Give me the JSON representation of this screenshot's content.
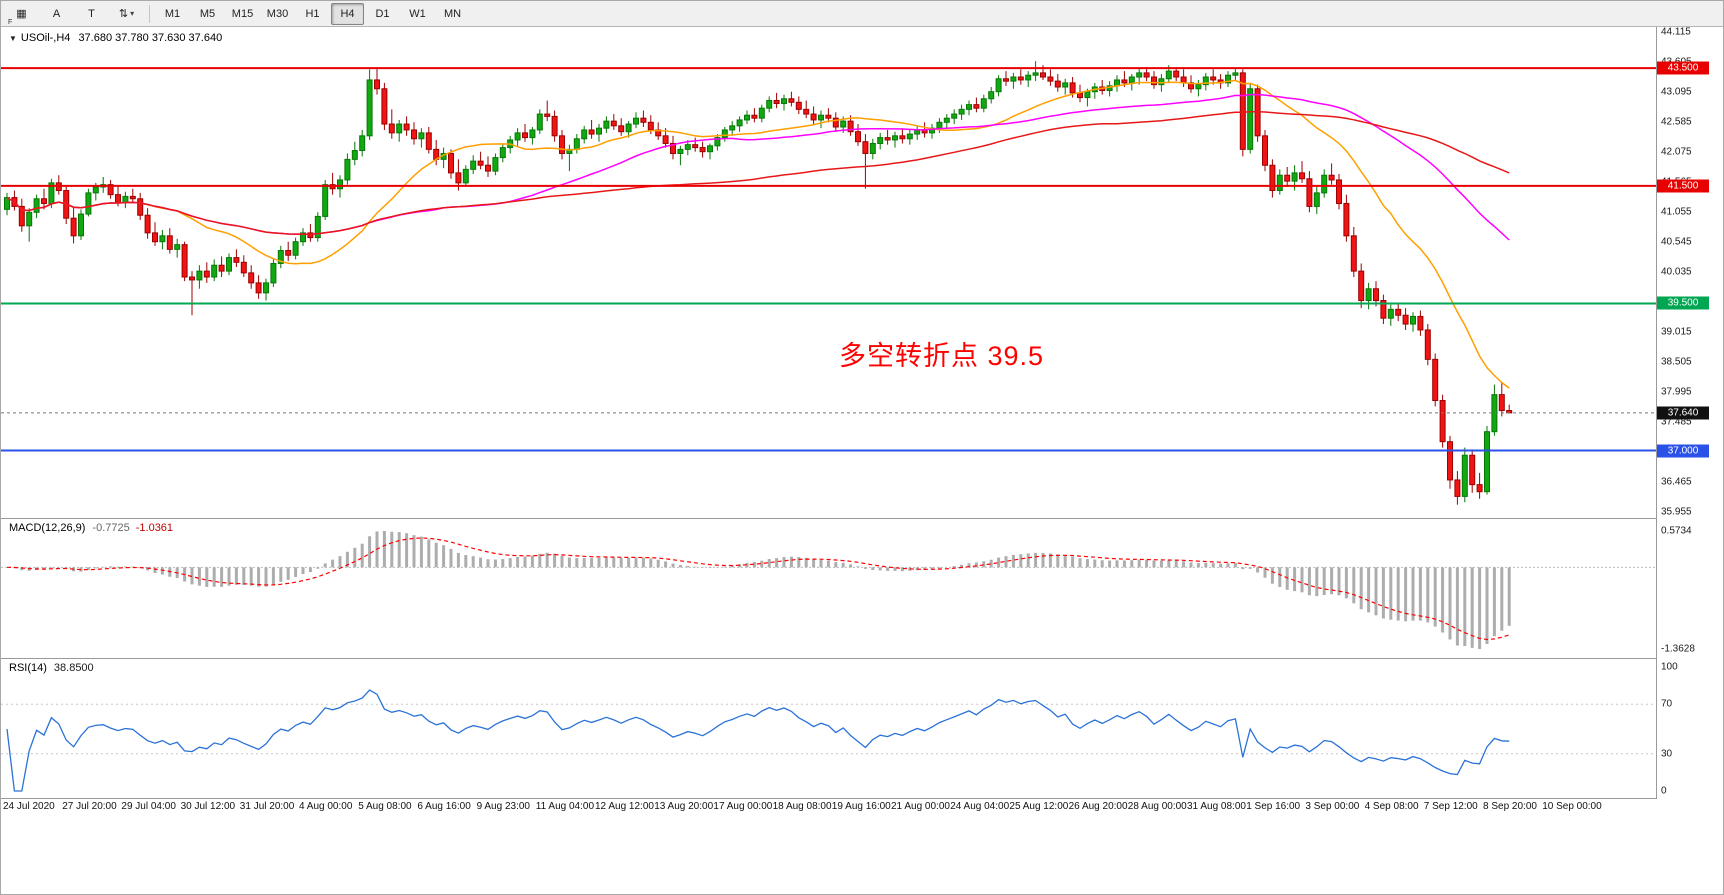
{
  "toolbar": {
    "left_tools": [
      {
        "name": "chart-grid-button",
        "glyph": "▦",
        "badge": "F"
      },
      {
        "name": "cursor-a-button",
        "glyph": "A"
      },
      {
        "name": "text-tool-button",
        "glyph": "T"
      },
      {
        "name": "scale-arrows-button",
        "glyph": "⇅",
        "caret": "▾"
      }
    ],
    "timeframes": [
      "M1",
      "M5",
      "M15",
      "M30",
      "H1",
      "H4",
      "D1",
      "W1",
      "MN"
    ],
    "active_timeframe": "H4"
  },
  "header": {
    "expander": "▼",
    "symbol_title": "USOil-,H4",
    "ohlc_text": "37.680 37.780 37.630 37.640"
  },
  "annotation": {
    "text": "多空转折点 39.5",
    "color": "#ff0000"
  },
  "macd_panel": {
    "name": "MACD(12,26,9)",
    "main_value": "-0.7725",
    "signal_value": "-1.0361",
    "scale_max": "0.5734",
    "scale_min": "-1.3628"
  },
  "rsi_panel": {
    "name": "RSI(14)",
    "value": "38.8500",
    "scale_labels": [
      "100",
      "70",
      "30",
      "0"
    ]
  },
  "chart_data": {
    "type": "candlestick",
    "symbol": "USOil-",
    "timeframe": "H4",
    "title": "USOil- H4 candlestick chart with MACD and RSI",
    "y_axis": {
      "max": 44.115,
      "min": 35.955,
      "step": 0.51,
      "labels": [
        "44.115",
        "43.605",
        "43.095",
        "42.585",
        "42.075",
        "41.565",
        "41.055",
        "40.545",
        "40.035",
        "39.525",
        "39.015",
        "38.505",
        "37.995",
        "37.485",
        "36.975",
        "36.465",
        "35.955"
      ]
    },
    "x_labels": [
      "24 Jul 2020",
      "27 Jul 20:00",
      "29 Jul 04:00",
      "30 Jul 12:00",
      "31 Jul 20:00",
      "4 Aug 00:00",
      "5 Aug 08:00",
      "6 Aug 16:00",
      "9 Aug 23:00",
      "11 Aug 04:00",
      "12 Aug 12:00",
      "13 Aug 20:00",
      "17 Aug 00:00",
      "18 Aug 08:00",
      "19 Aug 16:00",
      "21 Aug 00:00",
      "24 Aug 04:00",
      "25 Aug 12:00",
      "26 Aug 20:00",
      "28 Aug 00:00",
      "31 Aug 08:00",
      "1 Sep 16:00",
      "3 Sep 00:00",
      "4 Sep 08:00",
      "7 Sep 12:00",
      "8 Sep 20:00",
      "10 Sep 00:00"
    ],
    "x_label_every_n_candles": 8,
    "horizontal_lines": [
      {
        "price": 43.5,
        "label": "43.500",
        "color": "#e80000",
        "width": 2
      },
      {
        "price": 41.5,
        "label": "41.500",
        "color": "#e80000",
        "width": 2
      },
      {
        "price": 39.5,
        "label": "39.500",
        "color": "#00a651",
        "width": 2
      },
      {
        "price": 37.0,
        "label": "37.000",
        "color": "#2b52e8",
        "width": 2
      }
    ],
    "current_price": {
      "price": 37.64,
      "label": "37.640",
      "line_color": "#777777",
      "box_color": "#111111"
    },
    "indicators": {
      "moving_averages": [
        {
          "color": "#ff9f00",
          "period_estimate": 20
        },
        {
          "color": "#ff00ff",
          "period_estimate": 50
        },
        {
          "color": "#e81717",
          "period_estimate": 100
        }
      ],
      "macd": {
        "fast": 12,
        "slow": 26,
        "signal": 9,
        "histogram_color": "#adadad",
        "signal_color": "#ff0000"
      },
      "rsi": {
        "period": 14,
        "line_color": "#2a72d8",
        "levels": [
          70,
          30
        ]
      }
    },
    "candle_colors": {
      "up": "#11a811",
      "up_border": "#067806",
      "down": "#f01414",
      "down_border": "#9c0000"
    },
    "ohlc": [
      [
        41.1,
        41.38,
        41.0,
        41.3
      ],
      [
        41.3,
        41.42,
        41.08,
        41.15
      ],
      [
        41.15,
        41.28,
        40.72,
        40.82
      ],
      [
        40.82,
        41.12,
        40.55,
        41.05
      ],
      [
        41.05,
        41.35,
        40.95,
        41.28
      ],
      [
        41.28,
        41.45,
        41.1,
        41.2
      ],
      [
        41.2,
        41.62,
        41.12,
        41.55
      ],
      [
        41.55,
        41.68,
        41.35,
        41.42
      ],
      [
        41.42,
        41.5,
        40.85,
        40.95
      ],
      [
        40.95,
        41.15,
        40.52,
        40.65
      ],
      [
        40.65,
        41.1,
        40.58,
        41.02
      ],
      [
        41.02,
        41.45,
        40.98,
        41.38
      ],
      [
        41.38,
        41.55,
        41.25,
        41.48
      ],
      [
        41.48,
        41.65,
        41.38,
        41.52
      ],
      [
        41.52,
        41.6,
        41.28,
        41.35
      ],
      [
        41.35,
        41.48,
        41.15,
        41.22
      ],
      [
        41.22,
        41.4,
        41.12,
        41.32
      ],
      [
        41.32,
        41.45,
        41.2,
        41.28
      ],
      [
        41.28,
        41.38,
        40.92,
        41.0
      ],
      [
        41.0,
        41.12,
        40.6,
        40.7
      ],
      [
        40.7,
        40.88,
        40.48,
        40.55
      ],
      [
        40.55,
        40.75,
        40.42,
        40.65
      ],
      [
        40.65,
        40.78,
        40.35,
        40.42
      ],
      [
        40.42,
        40.6,
        40.28,
        40.5
      ],
      [
        40.5,
        40.55,
        39.88,
        39.95
      ],
      [
        39.95,
        40.05,
        39.3,
        39.9
      ],
      [
        39.9,
        40.15,
        39.75,
        40.05
      ],
      [
        40.05,
        40.2,
        39.85,
        39.95
      ],
      [
        39.95,
        40.25,
        39.88,
        40.15
      ],
      [
        40.15,
        40.3,
        39.95,
        40.05
      ],
      [
        40.05,
        40.35,
        39.98,
        40.28
      ],
      [
        40.28,
        40.42,
        40.12,
        40.2
      ],
      [
        40.2,
        40.32,
        39.95,
        40.02
      ],
      [
        40.02,
        40.15,
        39.75,
        39.85
      ],
      [
        39.85,
        39.98,
        39.58,
        39.68
      ],
      [
        39.68,
        39.92,
        39.55,
        39.85
      ],
      [
        39.85,
        40.25,
        39.78,
        40.18
      ],
      [
        40.18,
        40.48,
        40.1,
        40.4
      ],
      [
        40.4,
        40.55,
        40.22,
        40.32
      ],
      [
        40.32,
        40.62,
        40.25,
        40.55
      ],
      [
        40.55,
        40.78,
        40.48,
        40.7
      ],
      [
        40.7,
        40.85,
        40.55,
        40.62
      ],
      [
        40.62,
        41.05,
        40.55,
        40.98
      ],
      [
        40.98,
        41.6,
        40.92,
        41.52
      ],
      [
        41.52,
        41.72,
        41.35,
        41.45
      ],
      [
        41.45,
        41.68,
        41.3,
        41.6
      ],
      [
        41.6,
        42.05,
        41.52,
        41.95
      ],
      [
        41.95,
        42.25,
        41.85,
        42.1
      ],
      [
        42.1,
        42.45,
        42.0,
        42.35
      ],
      [
        42.35,
        43.48,
        42.28,
        43.3
      ],
      [
        43.3,
        43.52,
        43.05,
        43.15
      ],
      [
        43.15,
        43.25,
        42.45,
        42.55
      ],
      [
        42.55,
        42.8,
        42.3,
        42.4
      ],
      [
        42.4,
        42.62,
        42.25,
        42.55
      ],
      [
        42.55,
        42.68,
        42.35,
        42.45
      ],
      [
        42.45,
        42.58,
        42.2,
        42.3
      ],
      [
        42.3,
        42.48,
        42.15,
        42.4
      ],
      [
        42.4,
        42.5,
        42.05,
        42.12
      ],
      [
        42.12,
        42.28,
        41.85,
        41.95
      ],
      [
        41.95,
        42.15,
        41.8,
        42.05
      ],
      [
        42.05,
        42.12,
        41.62,
        41.72
      ],
      [
        41.72,
        41.95,
        41.42,
        41.55
      ],
      [
        41.55,
        41.85,
        41.48,
        41.78
      ],
      [
        41.78,
        42.02,
        41.7,
        41.92
      ],
      [
        41.92,
        42.08,
        41.78,
        41.85
      ],
      [
        41.85,
        42.0,
        41.65,
        41.75
      ],
      [
        41.75,
        42.05,
        41.68,
        41.98
      ],
      [
        41.98,
        42.22,
        41.9,
        42.15
      ],
      [
        42.15,
        42.35,
        42.05,
        42.28
      ],
      [
        42.28,
        42.48,
        42.18,
        42.4
      ],
      [
        42.4,
        42.55,
        42.25,
        42.32
      ],
      [
        42.32,
        42.5,
        42.2,
        42.45
      ],
      [
        42.45,
        42.8,
        42.38,
        42.72
      ],
      [
        42.72,
        42.95,
        42.6,
        42.68
      ],
      [
        42.68,
        42.78,
        42.25,
        42.35
      ],
      [
        42.35,
        42.45,
        41.95,
        42.05
      ],
      [
        42.05,
        42.2,
        41.75,
        42.12
      ],
      [
        42.12,
        42.38,
        42.05,
        42.3
      ],
      [
        42.3,
        42.52,
        42.22,
        42.45
      ],
      [
        42.45,
        42.62,
        42.3,
        42.38
      ],
      [
        42.38,
        42.55,
        42.25,
        42.48
      ],
      [
        42.48,
        42.68,
        42.4,
        42.6
      ],
      [
        42.6,
        42.72,
        42.45,
        42.52
      ],
      [
        42.52,
        42.65,
        42.35,
        42.42
      ],
      [
        42.42,
        42.6,
        42.32,
        42.55
      ],
      [
        42.55,
        42.75,
        42.48,
        42.65
      ],
      [
        42.65,
        42.78,
        42.5,
        42.58
      ],
      [
        42.58,
        42.7,
        42.38,
        42.45
      ],
      [
        42.45,
        42.58,
        42.28,
        42.35
      ],
      [
        42.35,
        42.48,
        42.15,
        42.22
      ],
      [
        42.22,
        42.35,
        41.95,
        42.05
      ],
      [
        42.05,
        42.18,
        41.85,
        42.12
      ],
      [
        42.12,
        42.28,
        42.02,
        42.2
      ],
      [
        42.2,
        42.32,
        42.08,
        42.15
      ],
      [
        42.15,
        42.25,
        41.98,
        42.08
      ],
      [
        42.08,
        42.22,
        41.95,
        42.18
      ],
      [
        42.18,
        42.38,
        42.1,
        42.32
      ],
      [
        42.32,
        42.5,
        42.25,
        42.45
      ],
      [
        42.45,
        42.6,
        42.35,
        42.52
      ],
      [
        42.52,
        42.68,
        42.42,
        42.62
      ],
      [
        42.62,
        42.78,
        42.55,
        42.7
      ],
      [
        42.7,
        42.82,
        42.58,
        42.65
      ],
      [
        42.65,
        42.88,
        42.58,
        42.82
      ],
      [
        42.82,
        43.02,
        42.75,
        42.95
      ],
      [
        42.95,
        43.08,
        42.82,
        42.9
      ],
      [
        42.9,
        43.05,
        42.78,
        42.98
      ],
      [
        42.98,
        43.1,
        42.85,
        42.92
      ],
      [
        42.92,
        43.02,
        42.72,
        42.8
      ],
      [
        42.8,
        42.95,
        42.65,
        42.72
      ],
      [
        42.72,
        42.85,
        42.55,
        42.62
      ],
      [
        42.62,
        42.78,
        42.48,
        42.7
      ],
      [
        42.7,
        42.82,
        42.58,
        42.65
      ],
      [
        42.65,
        42.75,
        42.42,
        42.5
      ],
      [
        42.5,
        42.68,
        42.4,
        42.6
      ],
      [
        42.6,
        42.7,
        42.35,
        42.42
      ],
      [
        42.42,
        42.55,
        42.18,
        42.25
      ],
      [
        42.25,
        42.38,
        41.45,
        42.05
      ],
      [
        42.05,
        42.3,
        41.95,
        42.22
      ],
      [
        42.22,
        42.4,
        42.12,
        42.32
      ],
      [
        42.32,
        42.45,
        42.2,
        42.28
      ],
      [
        42.28,
        42.42,
        42.15,
        42.35
      ],
      [
        42.35,
        42.48,
        42.22,
        42.3
      ],
      [
        42.3,
        42.45,
        42.2,
        42.38
      ],
      [
        42.38,
        42.52,
        42.28,
        42.45
      ],
      [
        42.45,
        42.58,
        42.32,
        42.4
      ],
      [
        42.4,
        42.55,
        42.3,
        42.48
      ],
      [
        42.48,
        42.65,
        42.4,
        42.58
      ],
      [
        42.58,
        42.72,
        42.48,
        42.65
      ],
      [
        42.65,
        42.8,
        42.55,
        42.72
      ],
      [
        42.72,
        42.88,
        42.62,
        42.8
      ],
      [
        42.8,
        42.95,
        42.7,
        42.88
      ],
      [
        42.88,
        43.0,
        42.75,
        42.82
      ],
      [
        42.82,
        43.05,
        42.75,
        42.98
      ],
      [
        42.98,
        43.18,
        42.9,
        43.1
      ],
      [
        43.1,
        43.38,
        43.02,
        43.32
      ],
      [
        43.32,
        43.45,
        43.2,
        43.28
      ],
      [
        43.28,
        43.42,
        43.15,
        43.35
      ],
      [
        43.35,
        43.48,
        43.22,
        43.3
      ],
      [
        43.3,
        43.45,
        43.18,
        43.38
      ],
      [
        43.38,
        43.62,
        43.28,
        43.42
      ],
      [
        43.42,
        43.55,
        43.3,
        43.35
      ],
      [
        43.35,
        43.48,
        43.2,
        43.28
      ],
      [
        43.28,
        43.4,
        43.1,
        43.18
      ],
      [
        43.18,
        43.32,
        43.05,
        43.25
      ],
      [
        43.25,
        43.35,
        43.0,
        43.08
      ],
      [
        43.08,
        43.22,
        42.92,
        43.0
      ],
      [
        43.0,
        43.15,
        42.85,
        43.1
      ],
      [
        43.1,
        43.25,
        42.98,
        43.18
      ],
      [
        43.18,
        43.3,
        43.05,
        43.12
      ],
      [
        43.12,
        43.28,
        43.02,
        43.2
      ],
      [
        43.2,
        43.38,
        43.1,
        43.3
      ],
      [
        43.3,
        43.45,
        43.18,
        43.25
      ],
      [
        43.25,
        43.4,
        43.12,
        43.35
      ],
      [
        43.35,
        43.5,
        43.22,
        43.42
      ],
      [
        43.42,
        43.52,
        43.28,
        43.35
      ],
      [
        43.35,
        43.45,
        43.15,
        43.22
      ],
      [
        43.22,
        43.4,
        43.1,
        43.32
      ],
      [
        43.32,
        43.55,
        43.25,
        43.45
      ],
      [
        43.45,
        43.52,
        43.28,
        43.35
      ],
      [
        43.35,
        43.48,
        43.18,
        43.25
      ],
      [
        43.25,
        43.38,
        43.08,
        43.15
      ],
      [
        43.15,
        43.3,
        43.02,
        43.22
      ],
      [
        43.22,
        43.42,
        43.12,
        43.35
      ],
      [
        43.35,
        43.48,
        43.22,
        43.3
      ],
      [
        43.3,
        43.4,
        43.15,
        43.25
      ],
      [
        43.25,
        43.45,
        43.18,
        43.38
      ],
      [
        43.38,
        43.5,
        43.28,
        43.42
      ],
      [
        43.42,
        43.48,
        42.0,
        42.12
      ],
      [
        42.12,
        43.25,
        42.05,
        43.15
      ],
      [
        43.15,
        43.22,
        42.25,
        42.35
      ],
      [
        42.35,
        42.45,
        41.75,
        41.85
      ],
      [
        41.85,
        41.95,
        41.3,
        41.42
      ],
      [
        41.42,
        41.78,
        41.35,
        41.68
      ],
      [
        41.68,
        41.82,
        41.48,
        41.58
      ],
      [
        41.58,
        41.85,
        41.42,
        41.72
      ],
      [
        41.72,
        41.92,
        41.55,
        41.62
      ],
      [
        41.62,
        41.75,
        41.05,
        41.15
      ],
      [
        41.15,
        41.48,
        41.02,
        41.38
      ],
      [
        41.38,
        41.78,
        41.3,
        41.68
      ],
      [
        41.68,
        41.88,
        41.52,
        41.6
      ],
      [
        41.6,
        41.7,
        41.1,
        41.2
      ],
      [
        41.2,
        41.35,
        40.55,
        40.65
      ],
      [
        40.65,
        40.8,
        39.95,
        40.05
      ],
      [
        40.05,
        40.18,
        39.42,
        39.55
      ],
      [
        39.55,
        39.85,
        39.4,
        39.75
      ],
      [
        39.75,
        39.88,
        39.45,
        39.55
      ],
      [
        39.55,
        39.65,
        39.15,
        39.25
      ],
      [
        39.25,
        39.48,
        39.12,
        39.4
      ],
      [
        39.4,
        39.5,
        39.2,
        39.3
      ],
      [
        39.3,
        39.42,
        39.05,
        39.15
      ],
      [
        39.15,
        39.35,
        39.02,
        39.28
      ],
      [
        39.28,
        39.38,
        38.95,
        39.05
      ],
      [
        39.05,
        39.15,
        38.45,
        38.55
      ],
      [
        38.55,
        38.65,
        37.75,
        37.85
      ],
      [
        37.85,
        37.95,
        37.05,
        37.15
      ],
      [
        37.15,
        37.25,
        36.35,
        36.5
      ],
      [
        36.5,
        36.65,
        36.08,
        36.22
      ],
      [
        36.22,
        37.05,
        36.12,
        36.92
      ],
      [
        36.92,
        37.02,
        36.28,
        36.42
      ],
      [
        36.42,
        36.62,
        36.18,
        36.3
      ],
      [
        36.3,
        37.42,
        36.25,
        37.32
      ],
      [
        37.32,
        38.12,
        37.25,
        37.95
      ],
      [
        37.95,
        38.15,
        37.58,
        37.68
      ],
      [
        37.68,
        37.78,
        37.63,
        37.64
      ]
    ]
  }
}
